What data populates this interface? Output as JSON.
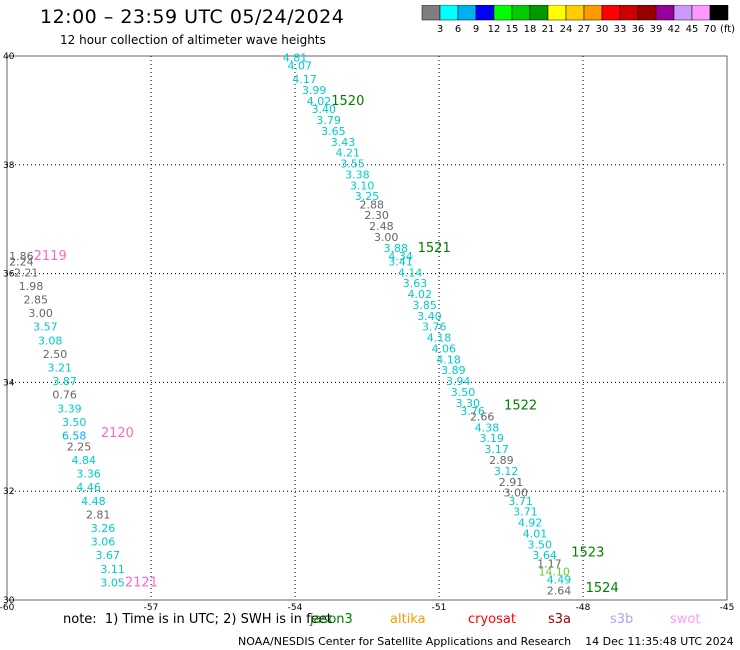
{
  "title": "12:00 – 23:59 UTC 05/24/2024",
  "subtitle": "12 hour collection of altimeter wave heights",
  "colorbar": {
    "unit": "(ft)",
    "bins": [
      {
        "color": "#7f7f7f",
        "label": ""
      },
      {
        "color": "#00ffff",
        "label": "3"
      },
      {
        "color": "#00b0f0",
        "label": "6"
      },
      {
        "color": "#0000ff",
        "label": "9"
      },
      {
        "color": "#00ff00",
        "label": "12"
      },
      {
        "color": "#00cc00",
        "label": "15"
      },
      {
        "color": "#009900",
        "label": "18"
      },
      {
        "color": "#ffff00",
        "label": "21"
      },
      {
        "color": "#ffcc00",
        "label": "24"
      },
      {
        "color": "#ff9900",
        "label": "27"
      },
      {
        "color": "#ff0000",
        "label": "30"
      },
      {
        "color": "#cc0000",
        "label": "33"
      },
      {
        "color": "#990000",
        "label": "36"
      },
      {
        "color": "#990099",
        "label": "39"
      },
      {
        "color": "#cc99ff",
        "label": "42"
      },
      {
        "color": "#ff99ff",
        "label": "45"
      },
      {
        "color": "#000000",
        "label": "70"
      }
    ]
  },
  "map": {
    "lon_ticks": [
      "-60",
      "-57",
      "-54",
      "-51",
      "-48",
      "-45"
    ],
    "lat_ticks": [
      "40",
      "38",
      "36",
      "34",
      "32",
      "30"
    ],
    "lon_range": [
      -60,
      -45
    ],
    "lat_range": [
      30,
      40
    ],
    "grid": "dotted"
  },
  "track_labels": [
    {
      "text": "1520",
      "lon": -52.9,
      "lat": 39.1,
      "color": "#008000"
    },
    {
      "text": "1521",
      "lon": -51.1,
      "lat": 36.4,
      "color": "#008000"
    },
    {
      "text": "1522",
      "lon": -49.3,
      "lat": 33.5,
      "color": "#008000"
    },
    {
      "text": "1523",
      "lon": -47.9,
      "lat": 30.8,
      "color": "#008000"
    },
    {
      "text": "1524",
      "lon": -47.6,
      "lat": 30.15,
      "color": "#008000"
    },
    {
      "text": "2119",
      "lon": -59.1,
      "lat": 36.25,
      "color": "#ff66cc"
    },
    {
      "text": "2120",
      "lon": -57.7,
      "lat": 33.0,
      "color": "#ff66cc"
    },
    {
      "text": "2121",
      "lon": -57.2,
      "lat": 30.25,
      "color": "#ff66cc"
    }
  ],
  "tracks": [
    {
      "name": "track-east",
      "points": [
        {
          "v": "4.81",
          "lon": -54.0,
          "lat": 39.9,
          "c": "#00cccc"
        },
        {
          "v": "4.07",
          "lon": -53.9,
          "lat": 39.75,
          "c": "#00cccc"
        },
        {
          "v": "4.17",
          "lon": -53.8,
          "lat": 39.5,
          "c": "#00cccc"
        },
        {
          "v": "3.99",
          "lon": -53.6,
          "lat": 39.3,
          "c": "#00cccc"
        },
        {
          "v": "4.02",
          "lon": -53.5,
          "lat": 39.1,
          "c": "#00cccc"
        },
        {
          "v": "3.40",
          "lon": -53.4,
          "lat": 38.95,
          "c": "#00cccc"
        },
        {
          "v": "3.79",
          "lon": -53.3,
          "lat": 38.75,
          "c": "#00cccc"
        },
        {
          "v": "3.65",
          "lon": -53.2,
          "lat": 38.55,
          "c": "#00cccc"
        },
        {
          "v": "3.43",
          "lon": -53.0,
          "lat": 38.35,
          "c": "#00cccc"
        },
        {
          "v": "4.21",
          "lon": -52.9,
          "lat": 38.15,
          "c": "#00cccc"
        },
        {
          "v": "3.55",
          "lon": -52.8,
          "lat": 37.95,
          "c": "#00cccc"
        },
        {
          "v": "3.38",
          "lon": -52.7,
          "lat": 37.75,
          "c": "#00cccc"
        },
        {
          "v": "3.10",
          "lon": -52.6,
          "lat": 37.55,
          "c": "#00cccc"
        },
        {
          "v": "3.25",
          "lon": -52.5,
          "lat": 37.35,
          "c": "#00cccc"
        },
        {
          "v": "2.88",
          "lon": -52.4,
          "lat": 37.2,
          "c": "#666666"
        },
        {
          "v": "2.30",
          "lon": -52.3,
          "lat": 37.0,
          "c": "#666666"
        },
        {
          "v": "2.48",
          "lon": -52.2,
          "lat": 36.8,
          "c": "#666666"
        },
        {
          "v": "3.00",
          "lon": -52.1,
          "lat": 36.6,
          "c": "#666666"
        },
        {
          "v": "3.88",
          "lon": -51.9,
          "lat": 36.4,
          "c": "#00cccc"
        },
        {
          "v": "4.34",
          "lon": -51.8,
          "lat": 36.25,
          "c": "#00cccc"
        },
        {
          "v": "3.41",
          "lon": -51.8,
          "lat": 36.15,
          "c": "#00cccc"
        },
        {
          "v": "4.14",
          "lon": -51.6,
          "lat": 35.95,
          "c": "#00cccc"
        },
        {
          "v": "3.63",
          "lon": -51.5,
          "lat": 35.75,
          "c": "#00cccc"
        },
        {
          "v": "4.02",
          "lon": -51.4,
          "lat": 35.55,
          "c": "#00cccc"
        },
        {
          "v": "3.85",
          "lon": -51.3,
          "lat": 35.35,
          "c": "#00cccc"
        },
        {
          "v": "3.40",
          "lon": -51.2,
          "lat": 35.15,
          "c": "#00cccc"
        },
        {
          "v": "3.76",
          "lon": -51.1,
          "lat": 34.95,
          "c": "#00cccc"
        },
        {
          "v": "4.18",
          "lon": -51.0,
          "lat": 34.75,
          "c": "#00cccc"
        },
        {
          "v": "4.06",
          "lon": -50.9,
          "lat": 34.55,
          "c": "#00cccc"
        },
        {
          "v": "4.18",
          "lon": -50.8,
          "lat": 34.35,
          "c": "#00cccc"
        },
        {
          "v": "3.89",
          "lon": -50.7,
          "lat": 34.15,
          "c": "#00cccc"
        },
        {
          "v": "3.94",
          "lon": -50.6,
          "lat": 33.95,
          "c": "#00cccc"
        },
        {
          "v": "3.50",
          "lon": -50.5,
          "lat": 33.75,
          "c": "#00cccc"
        },
        {
          "v": "3.30",
          "lon": -50.4,
          "lat": 33.55,
          "c": "#00cccc"
        },
        {
          "v": "3.76",
          "lon": -50.3,
          "lat": 33.4,
          "c": "#00cccc"
        },
        {
          "v": "2.66",
          "lon": -50.1,
          "lat": 33.3,
          "c": "#666666"
        },
        {
          "v": "4.38",
          "lon": -50.0,
          "lat": 33.1,
          "c": "#00cccc"
        },
        {
          "v": "3.19",
          "lon": -49.9,
          "lat": 32.9,
          "c": "#00cccc"
        },
        {
          "v": "3.17",
          "lon": -49.8,
          "lat": 32.7,
          "c": "#00cccc"
        },
        {
          "v": "2.89",
          "lon": -49.7,
          "lat": 32.5,
          "c": "#666666"
        },
        {
          "v": "3.12",
          "lon": -49.6,
          "lat": 32.3,
          "c": "#00cccc"
        },
        {
          "v": "2.91",
          "lon": -49.5,
          "lat": 32.1,
          "c": "#666666"
        },
        {
          "v": "3.00",
          "lon": -49.4,
          "lat": 31.9,
          "c": "#666666"
        },
        {
          "v": "3.71",
          "lon": -49.3,
          "lat": 31.75,
          "c": "#00cccc"
        },
        {
          "v": "3.71",
          "lon": -49.2,
          "lat": 31.55,
          "c": "#00cccc"
        },
        {
          "v": "4.92",
          "lon": -49.1,
          "lat": 31.35,
          "c": "#00cccc"
        },
        {
          "v": "4.01",
          "lon": -49.0,
          "lat": 31.15,
          "c": "#00cccc"
        },
        {
          "v": "3.50",
          "lon": -48.9,
          "lat": 30.95,
          "c": "#00cccc"
        },
        {
          "v": "3.64",
          "lon": -48.8,
          "lat": 30.75,
          "c": "#00cccc"
        },
        {
          "v": "1.17",
          "lon": -48.7,
          "lat": 30.6,
          "c": "#666666"
        },
        {
          "v": "14.10",
          "lon": -48.6,
          "lat": 30.45,
          "c": "#66cc33"
        },
        {
          "v": "4.49",
          "lon": -48.5,
          "lat": 30.3,
          "c": "#00cccc"
        },
        {
          "v": "2.64",
          "lon": -48.5,
          "lat": 30.1,
          "c": "#666666"
        }
      ]
    },
    {
      "name": "track-west",
      "points": [
        {
          "v": "1.86",
          "lon": -59.7,
          "lat": 36.25,
          "c": "#666666"
        },
        {
          "v": "2.24",
          "lon": -59.7,
          "lat": 36.15,
          "c": "#666666"
        },
        {
          "v": "2.21",
          "lon": -59.6,
          "lat": 35.95,
          "c": "#666666"
        },
        {
          "v": "1.98",
          "lon": -59.5,
          "lat": 35.7,
          "c": "#666666"
        },
        {
          "v": "2.85",
          "lon": -59.4,
          "lat": 35.45,
          "c": "#666666"
        },
        {
          "v": "3.00",
          "lon": -59.3,
          "lat": 35.2,
          "c": "#666666"
        },
        {
          "v": "3.57",
          "lon": -59.2,
          "lat": 34.95,
          "c": "#00cccc"
        },
        {
          "v": "3.08",
          "lon": -59.1,
          "lat": 34.7,
          "c": "#00cccc"
        },
        {
          "v": "2.50",
          "lon": -59.0,
          "lat": 34.45,
          "c": "#666666"
        },
        {
          "v": "3.21",
          "lon": -58.9,
          "lat": 34.2,
          "c": "#00cccc"
        },
        {
          "v": "3.87",
          "lon": -58.8,
          "lat": 33.95,
          "c": "#00cccc"
        },
        {
          "v": "0.76",
          "lon": -58.8,
          "lat": 33.7,
          "c": "#666666"
        },
        {
          "v": "3.39",
          "lon": -58.7,
          "lat": 33.45,
          "c": "#00cccc"
        },
        {
          "v": "3.50",
          "lon": -58.6,
          "lat": 33.2,
          "c": "#00cccc"
        },
        {
          "v": "6.58",
          "lon": -58.6,
          "lat": 32.95,
          "c": "#00b0f0"
        },
        {
          "v": "2.25",
          "lon": -58.5,
          "lat": 32.75,
          "c": "#666666"
        },
        {
          "v": "4.84",
          "lon": -58.4,
          "lat": 32.5,
          "c": "#00cccc"
        },
        {
          "v": "3.36",
          "lon": -58.3,
          "lat": 32.25,
          "c": "#00cccc"
        },
        {
          "v": "4.46",
          "lon": -58.3,
          "lat": 32.0,
          "c": "#00cccc"
        },
        {
          "v": "4.48",
          "lon": -58.2,
          "lat": 31.75,
          "c": "#00cccc"
        },
        {
          "v": "2.81",
          "lon": -58.1,
          "lat": 31.5,
          "c": "#666666"
        },
        {
          "v": "3.26",
          "lon": -58.0,
          "lat": 31.25,
          "c": "#00cccc"
        },
        {
          "v": "3.06",
          "lon": -58.0,
          "lat": 31.0,
          "c": "#00cccc"
        },
        {
          "v": "3.67",
          "lon": -57.9,
          "lat": 30.75,
          "c": "#00cccc"
        },
        {
          "v": "3.11",
          "lon": -57.8,
          "lat": 30.5,
          "c": "#00cccc"
        },
        {
          "v": "3.05",
          "lon": -57.8,
          "lat": 30.25,
          "c": "#00cccc"
        }
      ]
    }
  ],
  "note": "note:  1) Time is in UTC; 2) SWH is in feet",
  "satellites": [
    {
      "name": "jason3",
      "color": "#008000"
    },
    {
      "name": "altika",
      "color": "#ff9900"
    },
    {
      "name": "cryosat",
      "color": "#ff0000"
    },
    {
      "name": "s3a",
      "color": "#990000"
    },
    {
      "name": "s3b",
      "color": "#b0a0ff"
    },
    {
      "name": "swot",
      "color": "#ff99ff"
    }
  ],
  "footer": "NOAA/NESDIS Center for Satellite Applications and Research    14 Dec 11:35:48 UTC 2024"
}
